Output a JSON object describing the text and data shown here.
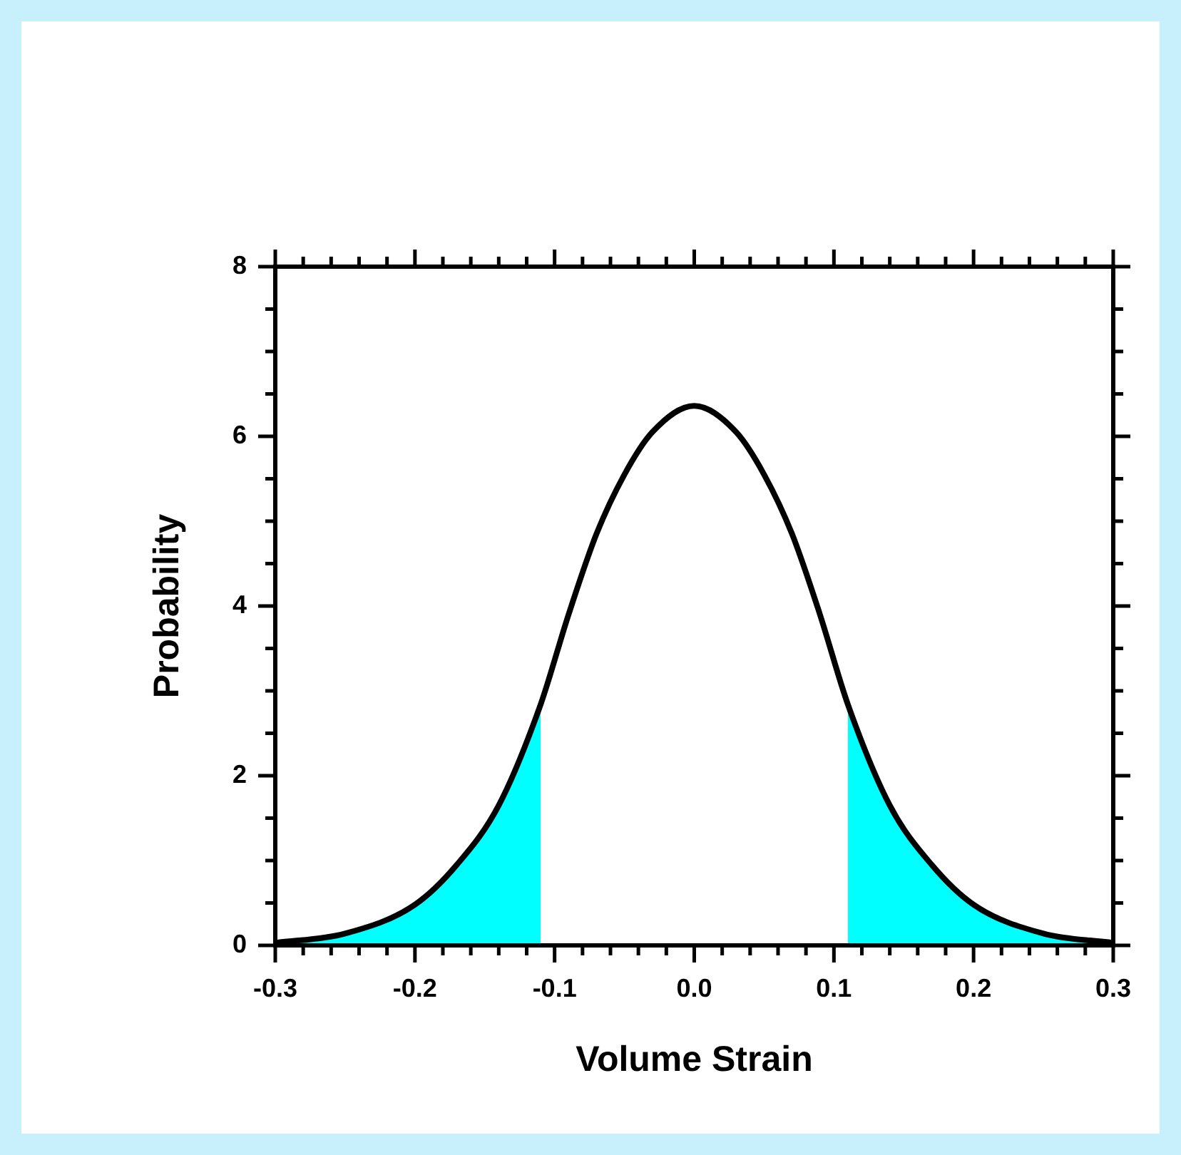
{
  "chart_data": {
    "type": "line",
    "xlabel": "Volume Strain",
    "ylabel": "Probability",
    "xlim": [
      -0.3,
      0.3
    ],
    "xticks": [
      -0.3,
      {
        "value": -0.28,
        "label": null
      },
      {
        "value": -0.26,
        "label": null
      },
      {
        "value": -0.24,
        "label": null
      },
      {
        "value": -0.22,
        "label": null
      },
      -0.2,
      {
        "value": -0.18,
        "label": null
      },
      {
        "value": -0.16,
        "label": null
      },
      {
        "value": -0.14,
        "label": null
      },
      {
        "value": -0.12,
        "label": null
      },
      -0.1,
      {
        "value": -0.08,
        "label": null
      },
      {
        "value": -0.06,
        "label": null
      },
      {
        "value": -0.04,
        "label": null
      },
      {
        "value": -0.02,
        "label": null
      },
      {
        "value": 0,
        "label": "0.0"
      },
      {
        "value": 0.02,
        "label": null
      },
      {
        "value": 0.04,
        "label": null
      },
      {
        "value": 0.06,
        "label": null
      },
      {
        "value": 0.08,
        "label": null
      },
      0.1,
      {
        "value": 0.12,
        "label": null
      },
      {
        "value": 0.14,
        "label": null
      },
      {
        "value": 0.16,
        "label": null
      },
      {
        "value": 0.18,
        "label": null
      },
      0.2,
      {
        "value": 0.22,
        "label": null
      },
      {
        "value": 0.24,
        "label": null
      },
      {
        "value": 0.26,
        "label": null
      },
      {
        "value": 0.28,
        "label": null
      },
      0.3
    ],
    "ylim": [
      0,
      8
    ],
    "yticks": [
      0,
      {
        "value": 0.5,
        "label": null
      },
      {
        "value": 1,
        "label": null
      },
      {
        "value": 1.5,
        "label": null
      },
      2,
      {
        "value": 2.5,
        "label": null
      },
      {
        "value": 3,
        "label": null
      },
      {
        "value": 3.5,
        "label": null
      },
      4,
      {
        "value": 4.5,
        "label": null
      },
      {
        "value": 5,
        "label": null
      },
      {
        "value": 5.5,
        "label": null
      },
      6,
      {
        "value": 6.5,
        "label": null
      },
      {
        "value": 7,
        "label": null
      },
      {
        "value": 7.5,
        "label": null
      },
      8
    ],
    "series": [
      {
        "type": "area",
        "color": "#00ffff",
        "x": [
          -0.3,
          -0.25,
          -0.2,
          -0.17,
          -0.14,
          -0.11
        ],
        "values": [
          0.03,
          0.14,
          0.48,
          0.95,
          1.65,
          2.84
        ]
      },
      {
        "type": "area",
        "color": "#00ffff",
        "x": [
          0.11,
          0.14,
          0.17,
          0.2,
          0.25,
          0.3
        ],
        "values": [
          2.84,
          1.65,
          0.95,
          0.48,
          0.14,
          0.03
        ]
      },
      {
        "type": "line",
        "color": "#000000",
        "x": [
          -0.3,
          -0.25,
          -0.2,
          -0.17,
          -0.14,
          -0.11,
          -0.09,
          -0.07,
          -0.05,
          -0.03,
          0,
          0.03,
          0.05,
          0.07,
          0.09,
          0.11,
          0.14,
          0.17,
          0.2,
          0.25,
          0.3
        ],
        "values": [
          0.03,
          0.14,
          0.48,
          0.95,
          1.65,
          2.84,
          3.9,
          4.85,
          5.55,
          6.05,
          6.36,
          6.05,
          5.55,
          4.85,
          3.9,
          2.84,
          1.65,
          0.95,
          0.48,
          0.14,
          0.03
        ]
      }
    ]
  }
}
